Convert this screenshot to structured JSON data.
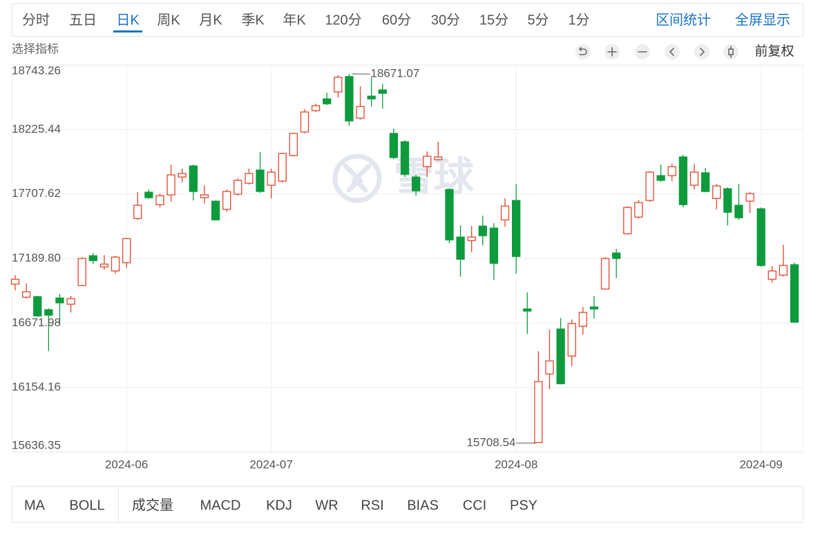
{
  "tabs": [
    "分时",
    "五日",
    "日K",
    "周K",
    "月K",
    "季K",
    "年K",
    "120分",
    "60分",
    "30分",
    "15分",
    "5分",
    "1分"
  ],
  "actions": [
    "区间统计",
    "全屏显示"
  ],
  "indicator_picker": "选择指标",
  "adjustment": "前复权",
  "watermark": "雪球",
  "chart_data": {
    "type": "candlestick",
    "x": [
      null,
      null,
      null,
      null,
      null,
      null,
      null,
      null,
      null,
      null,
      "2024-06",
      null,
      null,
      null,
      null,
      null,
      null,
      null,
      null,
      null,
      null,
      null,
      null,
      "2024-07",
      null,
      null,
      null,
      null,
      null,
      null,
      null,
      null,
      null,
      null,
      null,
      null,
      null,
      null,
      null,
      null,
      null,
      null,
      null,
      null,
      null,
      "2024-08",
      null,
      null,
      null,
      null,
      null,
      null,
      null,
      null,
      null,
      null,
      null,
      null,
      null,
      null,
      null,
      null,
      null,
      null,
      null,
      null,
      null,
      "2024-09",
      null,
      null,
      null
    ],
    "open": [
      16984,
      16879,
      16884,
      16779,
      16873,
      16823,
      16973,
      17212,
      17123,
      17090,
      17156,
      17511,
      17722,
      17622,
      17700,
      17844,
      17933,
      17678,
      17650,
      17584,
      17706,
      17794,
      17900,
      17778,
      17811,
      18016,
      18205,
      18377,
      18471,
      18527,
      18650,
      18316,
      18493,
      18543,
      18194,
      18127,
      17844,
      17927,
      17983,
      17744,
      17362,
      17334,
      17450,
      17434,
      17500,
      17656,
      16785,
      15712,
      16263,
      16624,
      16407,
      16646,
      16801,
      16945,
      17234,
      17389,
      17522,
      17656,
      17855,
      17855,
      18005,
      17778,
      17878,
      17672,
      17750,
      17617,
      17650,
      17589,
      17023,
      17056,
      17140
    ],
    "high": [
      17056,
      16990,
      16890,
      16790,
      16907,
      16890,
      17201,
      17234,
      17217,
      17212,
      17356,
      17722,
      17744,
      17711,
      17944,
      17911,
      17944,
      17778,
      17656,
      17744,
      17833,
      17911,
      18044,
      17911,
      18038,
      18199,
      18388,
      18432,
      18521,
      18662,
      18671.07,
      18571,
      18643,
      18593,
      18233,
      18138,
      17861,
      18050,
      18127,
      17750,
      17456,
      17450,
      17534,
      17473,
      17672,
      17789,
      16918,
      16446,
      16618,
      16712,
      16701,
      16801,
      16890,
      17201,
      17267,
      17611,
      17661,
      17889,
      17944,
      17950,
      18022,
      17950,
      17916,
      17789,
      17761,
      17789,
      17722,
      17600,
      17128,
      17300,
      17156
    ],
    "low": [
      16934,
      16868,
      16723,
      16446,
      16657,
      16757,
      16968,
      17145,
      17101,
      17068,
      17112,
      17500,
      17667,
      17600,
      17645,
      17800,
      17656,
      17633,
      17495,
      17567,
      17694,
      17783,
      17717,
      17672,
      17800,
      18011,
      18194,
      18366,
      18421,
      18482,
      18255,
      18305,
      18410,
      18394,
      17989,
      17844,
      17694,
      17844,
      17977,
      17312,
      17045,
      17240,
      17295,
      17018,
      17445,
      17068,
      16585,
      15708.54,
      16141,
      16180,
      16324,
      16579,
      16707,
      16940,
      17034,
      17384,
      17511,
      17645,
      17805,
      17811,
      17600,
      17744,
      17722,
      17584,
      17456,
      17500,
      17556,
      17123,
      16995,
      17045,
      16674
    ],
    "close": [
      17023,
      16923,
      16729,
      16735,
      16834,
      16868,
      17190,
      17173,
      17145,
      17201,
      17350,
      17617,
      17678,
      17694,
      17861,
      17872,
      17728,
      17700,
      17500,
      17728,
      17817,
      17872,
      17728,
      17883,
      18033,
      18194,
      18366,
      18416,
      18432,
      18645,
      18294,
      18410,
      18471,
      18516,
      18000,
      17866,
      17733,
      18011,
      18005,
      17339,
      17184,
      17362,
      17373,
      17151,
      17611,
      17206,
      16768,
      16202,
      16368,
      16185,
      16668,
      16757,
      16785,
      17190,
      17190,
      17600,
      17639,
      17883,
      17817,
      17927,
      17622,
      17883,
      17728,
      17772,
      17561,
      17517,
      17711,
      17134,
      17090,
      17134,
      16679
    ],
    "up_color": "#e0462a",
    "down_color": "#0d9b3d",
    "ylim": [
      15636.35,
      18743.26
    ],
    "yticks": [
      18743.26,
      18225.44,
      17707.62,
      {
        "value": 17189.8,
        "label": "17189.80"
      },
      16671.98,
      16154.16,
      15636.35
    ],
    "grid": true
  },
  "indicators": [
    "MA",
    "BOLL",
    "成交量",
    "MACD",
    "KDJ",
    "WR",
    "RSI",
    "BIAS",
    "CCI",
    "PSY"
  ]
}
